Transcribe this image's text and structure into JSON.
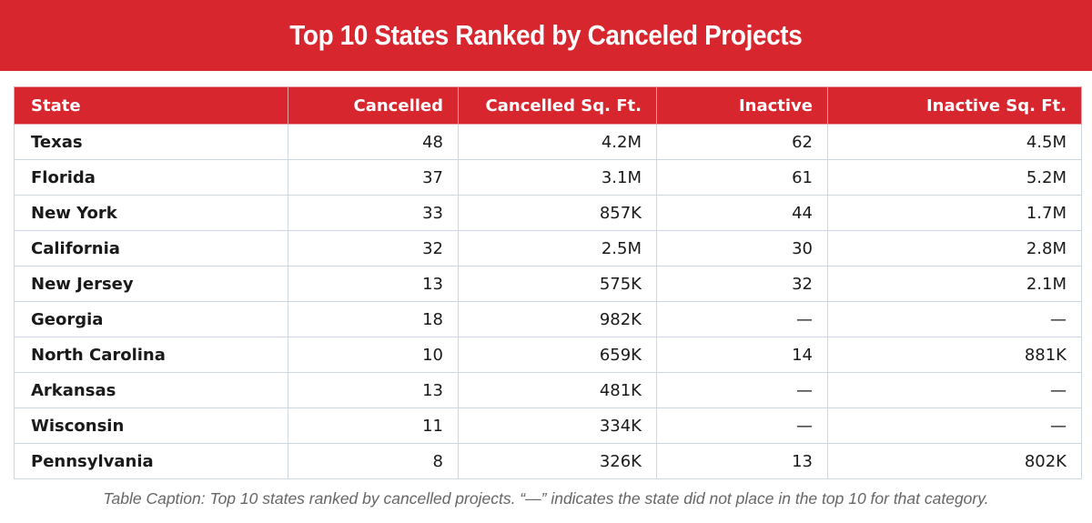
{
  "header": {
    "title": "Top 10 States Ranked by Canceled Projects"
  },
  "table": {
    "columns": [
      "State",
      "Cancelled",
      "Cancelled Sq. Ft.",
      "Inactive",
      "Inactive Sq. Ft."
    ],
    "rows": [
      [
        "Texas",
        48,
        "4.2M",
        62,
        "4.5M"
      ],
      [
        "Florida",
        37,
        "3.1M",
        61,
        "5.2M"
      ],
      [
        "New York",
        33,
        "857K",
        44,
        "1.7M"
      ],
      [
        "California",
        32,
        "2.5M",
        30,
        "2.8M"
      ],
      [
        "New Jersey",
        13,
        "575K",
        32,
        "2.1M"
      ],
      [
        "Georgia",
        18,
        "982K",
        "—",
        "—"
      ],
      [
        "North Carolina",
        10,
        "659K",
        14,
        "881K"
      ],
      [
        "Arkansas",
        13,
        "481K",
        "—",
        "—"
      ],
      [
        "Wisconsin",
        11,
        "334K",
        "—",
        "—"
      ],
      [
        "Pennsylvania",
        8,
        "326K",
        13,
        "802K"
      ]
    ]
  },
  "caption": "Table Caption: Top 10 states ranked by cancelled projects. “—” indicates the state did not place in the top 10 for that category."
}
